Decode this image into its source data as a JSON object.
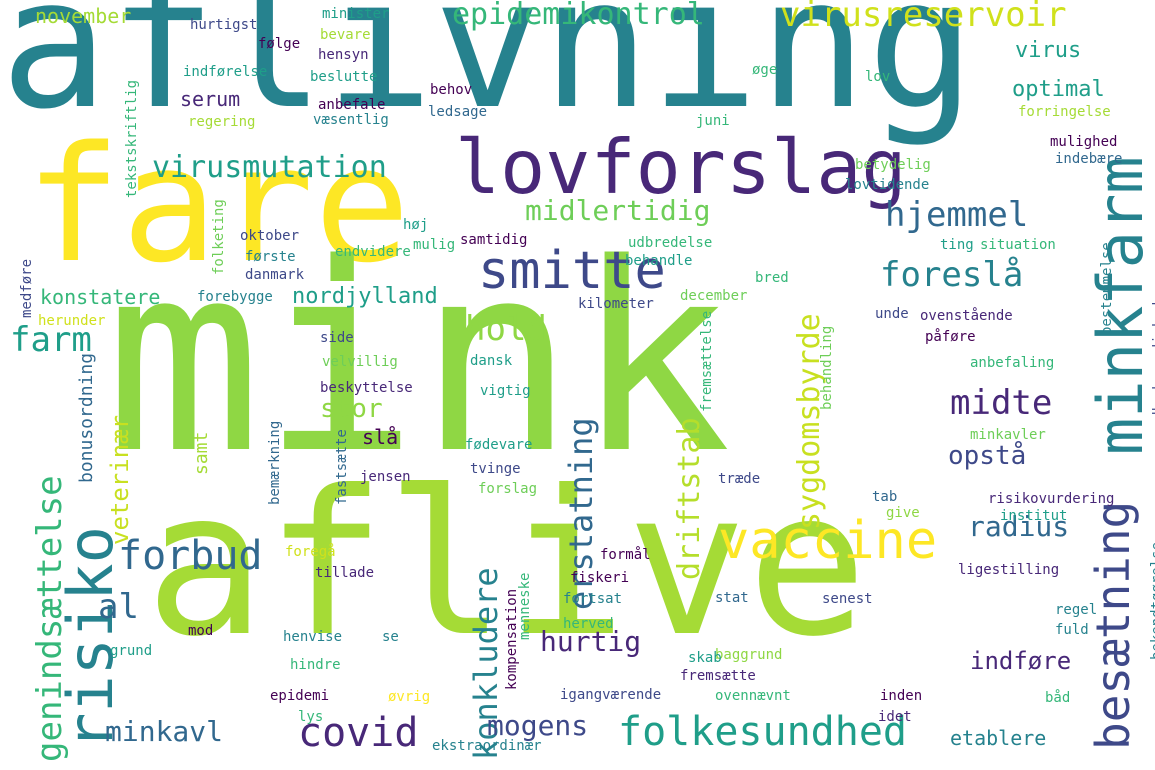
{
  "colors": {
    "background": "#ffffff",
    "palette": [
      "#440154",
      "#482878",
      "#3e4989",
      "#31688e",
      "#26828e",
      "#1f9e89",
      "#35b779",
      "#6ece58",
      "#b5de2b",
      "#fde725"
    ]
  },
  "words": [
    {
      "text": "aflivning",
      "color": "#26828e",
      "vertical": false
    },
    {
      "text": "fare",
      "color": "#fde725",
      "vertical": false
    },
    {
      "text": "mink",
      "color": "#8fd744",
      "vertical": false
    },
    {
      "text": "aflive",
      "color": "#a5db36",
      "vertical": false
    },
    {
      "text": "lovforslag",
      "color": "#482878",
      "vertical": false
    },
    {
      "text": "smitte",
      "color": "#3e4989",
      "vertical": false
    },
    {
      "text": "vaccine",
      "color": "#fde725",
      "vertical": false
    },
    {
      "text": "minkfarm",
      "color": "#26828e",
      "vertical": true
    },
    {
      "text": "besætning",
      "color": "#3e4989",
      "vertical": true
    },
    {
      "text": "risiko",
      "color": "#26828e",
      "vertical": true
    },
    {
      "text": "folkesundhed",
      "color": "#1f9e89",
      "vertical": false
    },
    {
      "text": "covid",
      "color": "#482878",
      "vertical": false
    },
    {
      "text": "forbud",
      "color": "#31688e",
      "vertical": false
    },
    {
      "text": "hjemmel",
      "color": "#31688e",
      "vertical": false
    },
    {
      "text": "foreslå",
      "color": "#26828e",
      "vertical": false
    },
    {
      "text": "virusreservoir",
      "color": "#d0e11c",
      "vertical": false
    },
    {
      "text": "virusmutation",
      "color": "#1f9e89",
      "vertical": false
    },
    {
      "text": "sygdomsbyrde",
      "color": "#c8e020",
      "vertical": true
    },
    {
      "text": "genindsættelse",
      "color": "#35b779",
      "vertical": true
    },
    {
      "text": "epidemikontrol",
      "color": "#35b779",
      "vertical": false
    },
    {
      "text": "hold",
      "color": "#8fd744",
      "vertical": false
    },
    {
      "text": "midte",
      "color": "#482878",
      "vertical": false
    },
    {
      "text": "farm",
      "color": "#1f9e89",
      "vertical": false
    },
    {
      "text": "al",
      "color": "#31688e",
      "vertical": false
    },
    {
      "text": "konkludere",
      "color": "#26828e",
      "vertical": true
    },
    {
      "text": "erstatning",
      "color": "#31688e",
      "vertical": true
    },
    {
      "text": "driftstab",
      "color": "#b5de2b",
      "vertical": true
    },
    {
      "text": "midlertidig",
      "color": "#6ece58",
      "vertical": false
    },
    {
      "text": "hurtig",
      "color": "#482878",
      "vertical": false
    },
    {
      "text": "mogens",
      "color": "#3e4989",
      "vertical": false
    },
    {
      "text": "minkavl",
      "color": "#31688e",
      "vertical": false
    },
    {
      "text": "radius",
      "color": "#31688e",
      "vertical": false
    },
    {
      "text": "opstå",
      "color": "#3e4989",
      "vertical": false
    },
    {
      "text": "indføre",
      "color": "#482878",
      "vertical": false
    },
    {
      "text": "etablere",
      "color": "#26828e",
      "vertical": false
    },
    {
      "text": "stor",
      "color": "#8fd744",
      "vertical": false
    },
    {
      "text": "veterinær",
      "color": "#c8e020",
      "vertical": true
    },
    {
      "text": "nordjylland",
      "color": "#1f9e89",
      "vertical": false
    },
    {
      "text": "optimal",
      "color": "#1f9e89",
      "vertical": false
    },
    {
      "text": "virus",
      "color": "#1f9e89",
      "vertical": false
    },
    {
      "text": "serum",
      "color": "#482878",
      "vertical": false
    },
    {
      "text": "november",
      "color": "#a5db36",
      "vertical": false
    },
    {
      "text": "konstatere",
      "color": "#35b779",
      "vertical": false
    },
    {
      "text": "bonusordning",
      "color": "#31688e",
      "vertical": true
    },
    {
      "text": "slå",
      "color": "#440154",
      "vertical": false
    },
    {
      "text": "samt",
      "color": "#a5db36",
      "vertical": true
    },
    {
      "text": "minister",
      "color": "#1f9e89",
      "vertical": false
    },
    {
      "text": "hurtigst",
      "color": "#3e4989",
      "vertical": false
    },
    {
      "text": "følge",
      "color": "#440154",
      "vertical": false
    },
    {
      "text": "bevare",
      "color": "#a5db36",
      "vertical": false
    },
    {
      "text": "hensyn",
      "color": "#482878",
      "vertical": false
    },
    {
      "text": "indførelse",
      "color": "#1f9e89",
      "vertical": false
    },
    {
      "text": "beslutte",
      "color": "#1f9e89",
      "vertical": false
    },
    {
      "text": "anbefale",
      "color": "#440154",
      "vertical": false
    },
    {
      "text": "væsentlig",
      "color": "#26828e",
      "vertical": false
    },
    {
      "text": "regering",
      "color": "#a5db36",
      "vertical": false
    },
    {
      "text": "behov",
      "color": "#440154",
      "vertical": false
    },
    {
      "text": "ledsage",
      "color": "#31688e",
      "vertical": false
    },
    {
      "text": "øge",
      "color": "#35b779",
      "vertical": false
    },
    {
      "text": "lov",
      "color": "#35b779",
      "vertical": false
    },
    {
      "text": "juni",
      "color": "#35b779",
      "vertical": false
    },
    {
      "text": "tekstskriftlig",
      "color": "#35b779",
      "vertical": true
    },
    {
      "text": "forringelse",
      "color": "#a5db36",
      "vertical": false
    },
    {
      "text": "mulighed",
      "color": "#440154",
      "vertical": false
    },
    {
      "text": "indebære",
      "color": "#31688e",
      "vertical": false
    },
    {
      "text": "betydelig",
      "color": "#6ece58",
      "vertical": false
    },
    {
      "text": "lovtidende",
      "color": "#26828e",
      "vertical": false
    },
    {
      "text": "folketing",
      "color": "#6ece58",
      "vertical": true
    },
    {
      "text": "høj",
      "color": "#1f9e89",
      "vertical": false
    },
    {
      "text": "mulig",
      "color": "#35b779",
      "vertical": false
    },
    {
      "text": "oktober",
      "color": "#3e4989",
      "vertical": false
    },
    {
      "text": "samtidig",
      "color": "#440154",
      "vertical": false
    },
    {
      "text": "udbredelse",
      "color": "#35b779",
      "vertical": false
    },
    {
      "text": "ting",
      "color": "#1f9e89",
      "vertical": false
    },
    {
      "text": "situation",
      "color": "#35b779",
      "vertical": false
    },
    {
      "text": "endvidere",
      "color": "#35b779",
      "vertical": false
    },
    {
      "text": "første",
      "color": "#26828e",
      "vertical": false
    },
    {
      "text": "behandle",
      "color": "#1f9e89",
      "vertical": false
    },
    {
      "text": "danmark",
      "color": "#3e4989",
      "vertical": false
    },
    {
      "text": "bred",
      "color": "#35b779",
      "vertical": false
    },
    {
      "text": "december",
      "color": "#6ece58",
      "vertical": false
    },
    {
      "text": "forebygge",
      "color": "#26828e",
      "vertical": false
    },
    {
      "text": "kilometer",
      "color": "#3e4989",
      "vertical": false
    },
    {
      "text": "bestemmelse",
      "color": "#26828e",
      "vertical": true
    },
    {
      "text": "medføre",
      "color": "#3e4989",
      "vertical": true
    },
    {
      "text": "herunder",
      "color": "#d0e11c",
      "vertical": false
    },
    {
      "text": "unde",
      "color": "#3e4989",
      "vertical": false
    },
    {
      "text": "ovenstående",
      "color": "#482878",
      "vertical": false
    },
    {
      "text": "påføre",
      "color": "#440154",
      "vertical": false
    },
    {
      "text": "sundhedsmyndighed",
      "color": "#3e4989",
      "vertical": true
    },
    {
      "text": "side",
      "color": "#3e4989",
      "vertical": false
    },
    {
      "text": "dansk",
      "color": "#1f9e89",
      "vertical": false
    },
    {
      "text": "velvillig",
      "color": "#6ece58",
      "vertical": false
    },
    {
      "text": "anbefaling",
      "color": "#35b779",
      "vertical": false
    },
    {
      "text": "beskyttelse",
      "color": "#482878",
      "vertical": false
    },
    {
      "text": "vigtig",
      "color": "#1f9e89",
      "vertical": false
    },
    {
      "text": "fremsættelse",
      "color": "#35b779",
      "vertical": true
    },
    {
      "text": "behandling",
      "color": "#6ece58",
      "vertical": true
    },
    {
      "text": "minkavler",
      "color": "#6ece58",
      "vertical": false
    },
    {
      "text": "fødevare",
      "color": "#1f9e89",
      "vertical": false
    },
    {
      "text": "jensen",
      "color": "#482878",
      "vertical": false
    },
    {
      "text": "tvinge",
      "color": "#3e4989",
      "vertical": false
    },
    {
      "text": "forslag",
      "color": "#6ece58",
      "vertical": false
    },
    {
      "text": "træde",
      "color": "#3e4989",
      "vertical": false
    },
    {
      "text": "tab",
      "color": "#31688e",
      "vertical": false
    },
    {
      "text": "risikovurdering",
      "color": "#482878",
      "vertical": false
    },
    {
      "text": "give",
      "color": "#8fd744",
      "vertical": false
    },
    {
      "text": "institut",
      "color": "#1f9e89",
      "vertical": false
    },
    {
      "text": "bemærkning",
      "color": "#31688e",
      "vertical": true
    },
    {
      "text": "fastsætte",
      "color": "#31688e",
      "vertical": true
    },
    {
      "text": "foregå",
      "color": "#d0e11c",
      "vertical": false
    },
    {
      "text": "tillade",
      "color": "#482878",
      "vertical": false
    },
    {
      "text": "formål",
      "color": "#440154",
      "vertical": false
    },
    {
      "text": "fiskeri",
      "color": "#440154",
      "vertical": false
    },
    {
      "text": "ligestilling",
      "color": "#482878",
      "vertical": false
    },
    {
      "text": "stat",
      "color": "#31688e",
      "vertical": false
    },
    {
      "text": "senest",
      "color": "#3e4989",
      "vertical": false
    },
    {
      "text": "regel",
      "color": "#26828e",
      "vertical": false
    },
    {
      "text": "fuld",
      "color": "#26828e",
      "vertical": false
    },
    {
      "text": "bekendtgørelse",
      "color": "#26828e",
      "vertical": true
    },
    {
      "text": "menneske",
      "color": "#35b779",
      "vertical": true
    },
    {
      "text": "fortsat",
      "color": "#26828e",
      "vertical": false
    },
    {
      "text": "mod",
      "color": "#440154",
      "vertical": false
    },
    {
      "text": "grund",
      "color": "#1f9e89",
      "vertical": false
    },
    {
      "text": "herved",
      "color": "#35b779",
      "vertical": false
    },
    {
      "text": "kompensation",
      "color": "#440154",
      "vertical": true
    },
    {
      "text": "henvise",
      "color": "#26828e",
      "vertical": false
    },
    {
      "text": "se",
      "color": "#26828e",
      "vertical": false
    },
    {
      "text": "hindre",
      "color": "#35b779",
      "vertical": false
    },
    {
      "text": "baggrund",
      "color": "#8fd744",
      "vertical": false
    },
    {
      "text": "skab",
      "color": "#1f9e89",
      "vertical": false
    },
    {
      "text": "fremsætte",
      "color": "#482878",
      "vertical": false
    },
    {
      "text": "epidemi",
      "color": "#440154",
      "vertical": false
    },
    {
      "text": "øvrig",
      "color": "#fde725",
      "vertical": false
    },
    {
      "text": "igangværende",
      "color": "#3e4989",
      "vertical": false
    },
    {
      "text": "ovennævnt",
      "color": "#35b779",
      "vertical": false
    },
    {
      "text": "inden",
      "color": "#440154",
      "vertical": false
    },
    {
      "text": "båd",
      "color": "#35b779",
      "vertical": false
    },
    {
      "text": "lys",
      "color": "#35b779",
      "vertical": false
    },
    {
      "text": "idet",
      "color": "#482878",
      "vertical": false
    },
    {
      "text": "ekstraordinær",
      "color": "#26828e",
      "vertical": false
    }
  ]
}
